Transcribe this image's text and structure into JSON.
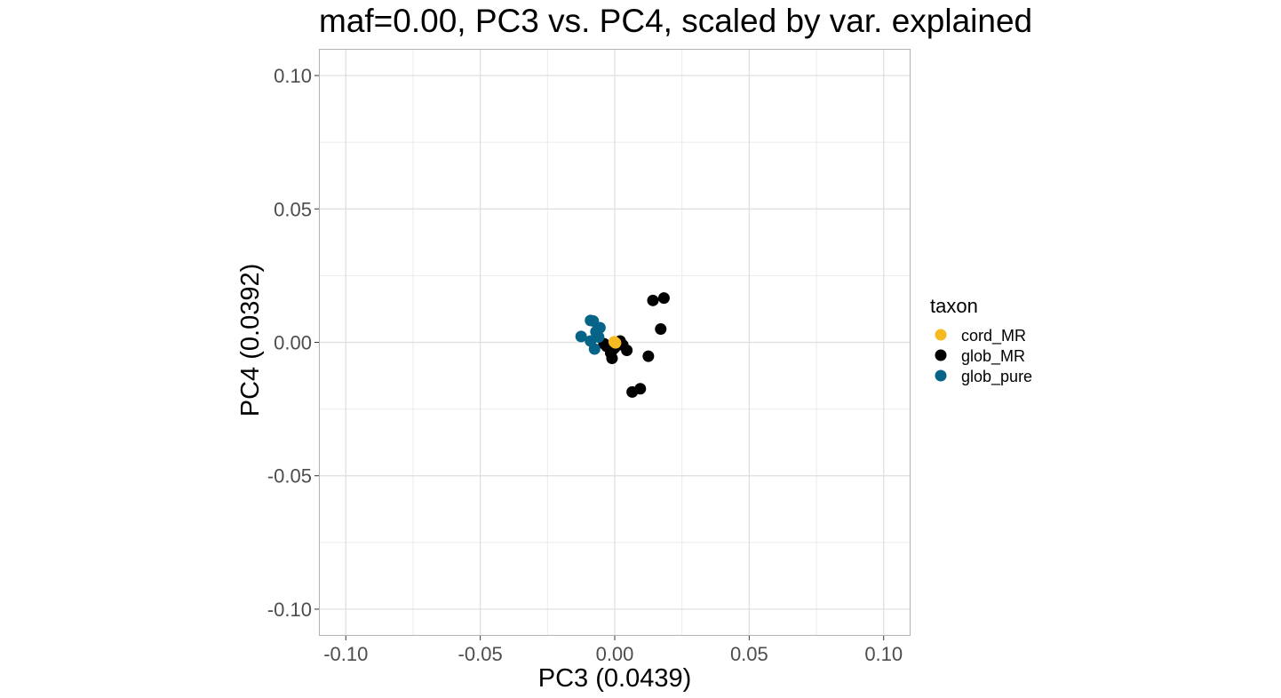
{
  "chart_data": {
    "type": "scatter",
    "title": "maf=0.00, PC3 vs. PC4, scaled by var. explained",
    "xlabel": "PC3 (0.0439)",
    "ylabel": "PC4 (0.0392)",
    "xlim": [
      -0.11,
      0.11
    ],
    "ylim": [
      -0.11,
      0.11
    ],
    "x_ticks": [
      -0.1,
      -0.05,
      0.0,
      0.05,
      0.1
    ],
    "y_ticks": [
      -0.1,
      -0.05,
      0.0,
      0.05,
      0.1
    ],
    "x_tick_labels": [
      "-0.10",
      "-0.05",
      "0.00",
      "0.05",
      "0.10"
    ],
    "y_tick_labels": [
      "-0.10",
      "-0.05",
      "0.00",
      "0.05",
      "0.10"
    ],
    "grid": true,
    "legend": {
      "title": "taxon",
      "position": "right"
    },
    "series": [
      {
        "name": "glob_MR",
        "color": "#000000",
        "points": [
          [
            0.0142,
            0.0157
          ],
          [
            0.0183,
            0.0166
          ],
          [
            0.0171,
            0.005
          ],
          [
            0.0125,
            -0.0052
          ],
          [
            0.0095,
            -0.0174
          ],
          [
            0.0065,
            -0.0186
          ],
          [
            0.0045,
            -0.003
          ],
          [
            0.002,
            0.0005
          ],
          [
            0.001,
            -0.001
          ],
          [
            -0.0005,
            -0.0025
          ],
          [
            -0.0015,
            -0.004
          ],
          [
            -0.001,
            -0.006
          ],
          [
            -0.003,
            -0.0015
          ],
          [
            -0.004,
            -0.0005
          ],
          [
            0.0,
            -0.002
          ],
          [
            0.003,
            -0.001
          ]
        ]
      },
      {
        "name": "glob_pure",
        "color": "#076489",
        "points": [
          [
            -0.0125,
            0.0022
          ],
          [
            -0.009,
            0.0082
          ],
          [
            -0.008,
            0.008
          ],
          [
            -0.0055,
            0.0055
          ],
          [
            -0.007,
            0.004
          ],
          [
            -0.009,
            0.0005
          ],
          [
            -0.0075,
            -0.0025
          ],
          [
            -0.006,
            0.002
          ]
        ]
      },
      {
        "name": "cord_MR",
        "color": "#F4BA1F",
        "points": [
          [
            -0.0002,
            0.0002
          ],
          [
            0.0003,
            -0.0002
          ]
        ]
      }
    ]
  }
}
